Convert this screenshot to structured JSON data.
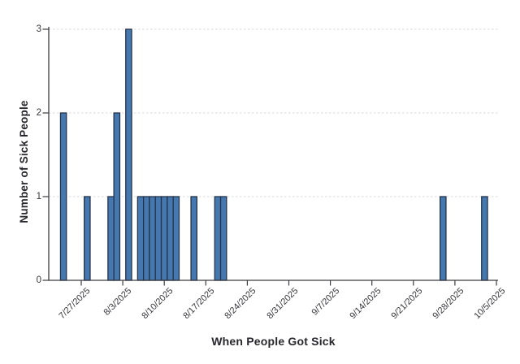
{
  "chart_data": {
    "type": "bar",
    "title": "",
    "xlabel": "When People Got Sick",
    "ylabel": "Number of Sick People",
    "x_tick_labels": [
      "7/27/2025",
      "8/3/2025",
      "8/10/2025",
      "8/17/2025",
      "8/24/2025",
      "8/31/2025",
      "9/7/2025",
      "9/14/2025",
      "9/21/2025",
      "9/28/2025",
      "10/5/2025"
    ],
    "y_tick_labels": [
      "0",
      "1",
      "2",
      "3"
    ],
    "ylim": [
      0,
      3
    ],
    "bin_size": "1 day",
    "x_tick_interval": "weekly",
    "grid": "horizontal-dashed",
    "legend": "none",
    "points": [
      {
        "date": "7/24/2025",
        "count": 2
      },
      {
        "date": "7/28/2025",
        "count": 1
      },
      {
        "date": "8/1/2025",
        "count": 1
      },
      {
        "date": "8/2/2025",
        "count": 2
      },
      {
        "date": "8/4/2025",
        "count": 3
      },
      {
        "date": "8/6/2025",
        "count": 1
      },
      {
        "date": "8/7/2025",
        "count": 1
      },
      {
        "date": "8/8/2025",
        "count": 1
      },
      {
        "date": "8/9/2025",
        "count": 1
      },
      {
        "date": "8/10/2025",
        "count": 1
      },
      {
        "date": "8/11/2025",
        "count": 1
      },
      {
        "date": "8/12/2025",
        "count": 1
      },
      {
        "date": "8/15/2025",
        "count": 1
      },
      {
        "date": "8/19/2025",
        "count": 1
      },
      {
        "date": "8/20/2025",
        "count": 1
      },
      {
        "date": "9/26/2025",
        "count": 1
      },
      {
        "date": "10/3/2025",
        "count": 1
      }
    ],
    "colors": {
      "background": "#ffffff",
      "bar_fill": "#4678b0",
      "bar_stroke": "#25334a",
      "gridline": "#dadada",
      "axis": "#3c3c42",
      "tick_label": "#36363c",
      "axis_title": "#26262c"
    }
  }
}
